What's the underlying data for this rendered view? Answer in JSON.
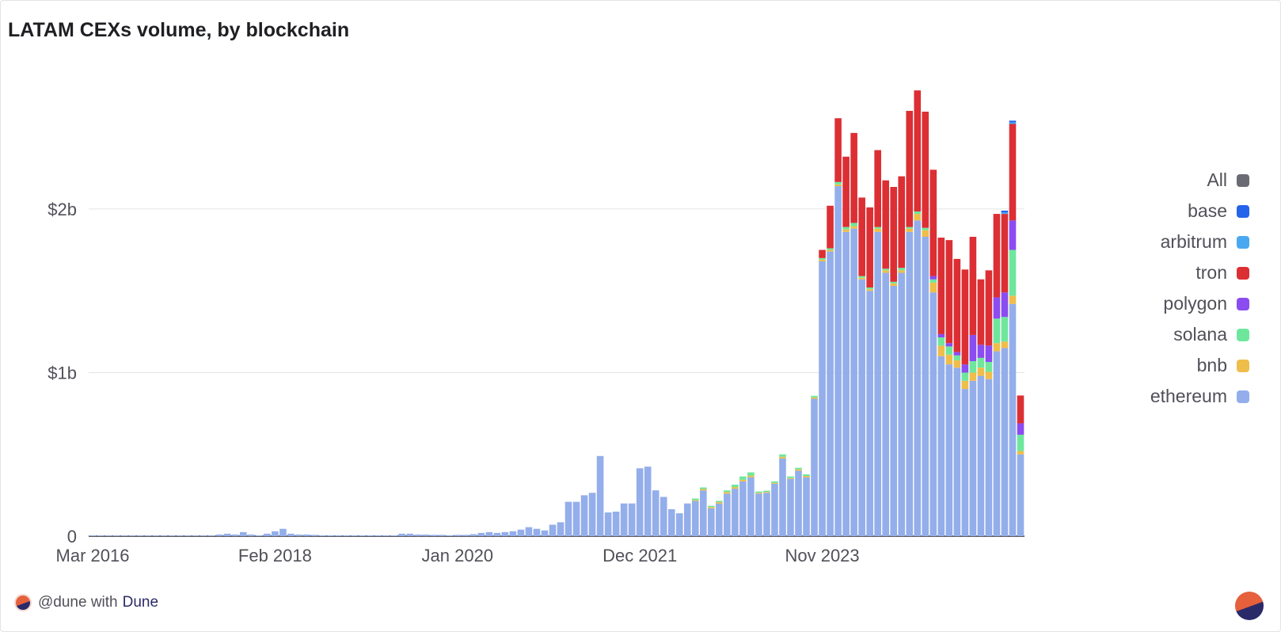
{
  "page": {
    "footer_handle": "@dune with",
    "footer_brand": "Dune"
  },
  "chart_data": {
    "type": "bar",
    "stacked": true,
    "title": "LATAM CEXs volume, by blockchain",
    "xlabel": "",
    "ylabel": "",
    "ylim": [
      0,
      2900000000
    ],
    "y_ticks": [
      {
        "value": 0,
        "label": "0"
      },
      {
        "value": 1000000000,
        "label": "$1b"
      },
      {
        "value": 2000000000,
        "label": "$2b"
      }
    ],
    "x_ticks": [
      {
        "label": "Mar 2016",
        "index": 0
      },
      {
        "label": "Feb 2018",
        "index": 23
      },
      {
        "label": "Jan 2020",
        "index": 46
      },
      {
        "label": "Dec 2021",
        "index": 69
      },
      {
        "label": "Nov 2023",
        "index": 92
      }
    ],
    "x_start": "2016-03",
    "x_end": "2025-06",
    "grid": true,
    "legend_position": "right",
    "legend": [
      {
        "name": "All",
        "color": "#6b6b73"
      },
      {
        "name": "base",
        "color": "#2563eb"
      },
      {
        "name": "arbitrum",
        "color": "#4aa8f0"
      },
      {
        "name": "tron",
        "color": "#dc2f34"
      },
      {
        "name": "polygon",
        "color": "#8b4cf0"
      },
      {
        "name": "solana",
        "color": "#6ee79c"
      },
      {
        "name": "bnb",
        "color": "#efbd4a"
      },
      {
        "name": "ethereum",
        "color": "#93aeea"
      }
    ],
    "series": [
      {
        "name": "ethereum",
        "color": "#93aeea",
        "values": [
          0.002,
          0.002,
          0.002,
          0.002,
          0.002,
          0.002,
          0.002,
          0.002,
          0.002,
          0.002,
          0.002,
          0.002,
          0.002,
          0.002,
          0.002,
          0.002,
          0.01,
          0.015,
          0.01,
          0.025,
          0.01,
          0.005,
          0.015,
          0.03,
          0.045,
          0.015,
          0.01,
          0.01,
          0.008,
          0.005,
          0.005,
          0.005,
          0.005,
          0.005,
          0.005,
          0.005,
          0.005,
          0.005,
          0.005,
          0.015,
          0.015,
          0.01,
          0.01,
          0.008,
          0.008,
          0.005,
          0.008,
          0.008,
          0.012,
          0.02,
          0.025,
          0.02,
          0.025,
          0.03,
          0.04,
          0.055,
          0.045,
          0.035,
          0.07,
          0.085,
          0.21,
          0.21,
          0.25,
          0.265,
          0.49,
          0.145,
          0.15,
          0.2,
          0.2,
          0.415,
          0.425,
          0.28,
          0.24,
          0.165,
          0.14,
          0.2,
          0.215,
          0.28,
          0.17,
          0.2,
          0.26,
          0.29,
          0.335,
          0.36,
          0.26,
          0.265,
          0.32,
          0.475,
          0.35,
          0.4,
          0.36,
          0.84,
          1.68,
          1.74,
          2.14,
          1.86,
          1.88,
          1.57,
          1.5,
          1.86,
          1.61,
          1.53,
          1.61,
          1.86,
          1.93,
          1.83,
          1.49,
          1.1,
          1.05,
          1.03,
          0.9,
          0.95,
          0.98,
          0.96,
          1.13,
          1.15,
          1.42,
          0.5
        ]
      },
      {
        "name": "bnb",
        "color": "#efbd4a",
        "values": [
          0,
          0,
          0,
          0,
          0,
          0,
          0,
          0,
          0,
          0,
          0,
          0,
          0,
          0,
          0,
          0,
          0,
          0,
          0,
          0,
          0,
          0,
          0,
          0,
          0,
          0,
          0,
          0,
          0,
          0,
          0,
          0,
          0,
          0,
          0,
          0,
          0,
          0,
          0,
          0,
          0,
          0,
          0,
          0,
          0,
          0,
          0,
          0,
          0,
          0,
          0,
          0,
          0,
          0,
          0,
          0,
          0,
          0,
          0,
          0,
          0,
          0,
          0,
          0,
          0,
          0,
          0,
          0,
          0,
          0,
          0,
          0,
          0,
          0,
          0,
          0,
          0.005,
          0.008,
          0.008,
          0.008,
          0.01,
          0.01,
          0.01,
          0.01,
          0.005,
          0.005,
          0.005,
          0.01,
          0.005,
          0.008,
          0.008,
          0.008,
          0.01,
          0.01,
          0.01,
          0.015,
          0.015,
          0.01,
          0.01,
          0.02,
          0.015,
          0.015,
          0.015,
          0.02,
          0.04,
          0.04,
          0.06,
          0.065,
          0.06,
          0.045,
          0.05,
          0.05,
          0.05,
          0.045,
          0.05,
          0.04,
          0.05,
          0.02
        ]
      },
      {
        "name": "solana",
        "color": "#6ee79c",
        "values": [
          0,
          0,
          0,
          0,
          0,
          0,
          0,
          0,
          0,
          0,
          0,
          0,
          0,
          0,
          0,
          0,
          0,
          0,
          0,
          0,
          0,
          0,
          0,
          0,
          0,
          0,
          0,
          0,
          0,
          0,
          0,
          0,
          0,
          0,
          0,
          0,
          0,
          0,
          0,
          0,
          0,
          0,
          0,
          0,
          0,
          0,
          0,
          0,
          0,
          0,
          0,
          0,
          0,
          0,
          0,
          0,
          0,
          0,
          0,
          0,
          0,
          0,
          0,
          0,
          0,
          0,
          0,
          0,
          0,
          0,
          0,
          0,
          0,
          0,
          0,
          0,
          0.01,
          0.01,
          0.008,
          0.008,
          0.01,
          0.015,
          0.02,
          0.02,
          0.008,
          0.008,
          0.01,
          0.015,
          0.01,
          0.01,
          0.01,
          0.01,
          0.01,
          0.01,
          0.015,
          0.015,
          0.02,
          0.01,
          0.01,
          0.01,
          0.01,
          0.01,
          0.015,
          0.01,
          0.015,
          0.015,
          0.02,
          0.05,
          0.05,
          0.03,
          0.05,
          0.07,
          0.06,
          0.06,
          0.15,
          0.15,
          0.28,
          0.1
        ]
      },
      {
        "name": "polygon",
        "color": "#8b4cf0",
        "values": [
          0,
          0,
          0,
          0,
          0,
          0,
          0,
          0,
          0,
          0,
          0,
          0,
          0,
          0,
          0,
          0,
          0,
          0,
          0,
          0,
          0,
          0,
          0,
          0,
          0,
          0,
          0,
          0,
          0,
          0,
          0,
          0,
          0,
          0,
          0,
          0,
          0,
          0,
          0,
          0,
          0,
          0,
          0,
          0,
          0,
          0,
          0,
          0,
          0,
          0,
          0,
          0,
          0,
          0,
          0,
          0,
          0,
          0,
          0,
          0,
          0,
          0,
          0,
          0,
          0,
          0,
          0,
          0,
          0,
          0,
          0,
          0,
          0,
          0,
          0,
          0,
          0,
          0,
          0,
          0,
          0,
          0,
          0,
          0,
          0,
          0,
          0,
          0,
          0,
          0,
          0,
          0,
          0,
          0,
          0,
          0,
          0,
          0,
          0,
          0,
          0,
          0,
          0,
          0,
          0,
          0,
          0.02,
          0.02,
          0.02,
          0.02,
          0.05,
          0.16,
          0.08,
          0.1,
          0.13,
          0.15,
          0.18,
          0.07
        ]
      },
      {
        "name": "tron",
        "color": "#dc2f34",
        "values": [
          0,
          0,
          0,
          0,
          0,
          0,
          0,
          0,
          0,
          0,
          0,
          0,
          0,
          0,
          0,
          0,
          0,
          0,
          0,
          0,
          0,
          0,
          0,
          0,
          0,
          0,
          0,
          0,
          0,
          0,
          0,
          0,
          0,
          0,
          0,
          0,
          0,
          0,
          0,
          0,
          0,
          0,
          0,
          0,
          0,
          0,
          0,
          0,
          0,
          0,
          0,
          0,
          0,
          0,
          0,
          0,
          0,
          0,
          0,
          0,
          0,
          0,
          0,
          0,
          0,
          0,
          0,
          0,
          0,
          0,
          0,
          0,
          0,
          0,
          0,
          0,
          0,
          0,
          0,
          0,
          0,
          0,
          0,
          0,
          0,
          0,
          0,
          0,
          0,
          0,
          0,
          0,
          0.05,
          0.26,
          0.39,
          0.43,
          0.55,
          0.48,
          0.49,
          0.47,
          0.54,
          0.58,
          0.56,
          0.71,
          0.74,
          0.71,
          0.65,
          0.59,
          0.63,
          0.57,
          0.58,
          0.6,
          0.4,
          0.46,
          0.51,
          0.48,
          0.59,
          0.17
        ]
      },
      {
        "name": "arbitrum",
        "color": "#4aa8f0",
        "values": [
          0,
          0,
          0,
          0,
          0,
          0,
          0,
          0,
          0,
          0,
          0,
          0,
          0,
          0,
          0,
          0,
          0,
          0,
          0,
          0,
          0,
          0,
          0,
          0,
          0,
          0,
          0,
          0,
          0,
          0,
          0,
          0,
          0,
          0,
          0,
          0,
          0,
          0,
          0,
          0,
          0,
          0,
          0,
          0,
          0,
          0,
          0,
          0,
          0,
          0,
          0,
          0,
          0,
          0,
          0,
          0,
          0,
          0,
          0,
          0,
          0,
          0,
          0,
          0,
          0,
          0,
          0,
          0,
          0,
          0,
          0,
          0,
          0,
          0,
          0,
          0,
          0,
          0,
          0,
          0,
          0,
          0,
          0,
          0,
          0,
          0,
          0,
          0,
          0,
          0,
          0,
          0,
          0,
          0,
          0,
          0,
          0,
          0,
          0,
          0,
          0,
          0,
          0,
          0,
          0,
          0,
          0,
          0,
          0,
          0,
          0,
          0,
          0,
          0,
          0,
          0.01,
          0.01,
          0
        ]
      },
      {
        "name": "base",
        "color": "#2563eb",
        "values": [
          0,
          0,
          0,
          0,
          0,
          0,
          0,
          0,
          0,
          0,
          0,
          0,
          0,
          0,
          0,
          0,
          0,
          0,
          0,
          0,
          0,
          0,
          0,
          0,
          0,
          0,
          0,
          0,
          0,
          0,
          0,
          0,
          0,
          0,
          0,
          0,
          0,
          0,
          0,
          0,
          0,
          0,
          0,
          0,
          0,
          0,
          0,
          0,
          0,
          0,
          0,
          0,
          0,
          0,
          0,
          0,
          0,
          0,
          0,
          0,
          0,
          0,
          0,
          0,
          0,
          0,
          0,
          0,
          0,
          0,
          0,
          0,
          0,
          0,
          0,
          0,
          0,
          0,
          0,
          0,
          0,
          0,
          0,
          0,
          0,
          0,
          0,
          0,
          0,
          0,
          0,
          0,
          0,
          0,
          0,
          0,
          0,
          0,
          0,
          0,
          0,
          0,
          0,
          0,
          0,
          0,
          0,
          0,
          0,
          0,
          0,
          0,
          0,
          0,
          0,
          0.01,
          0.01,
          0
        ]
      }
    ]
  }
}
